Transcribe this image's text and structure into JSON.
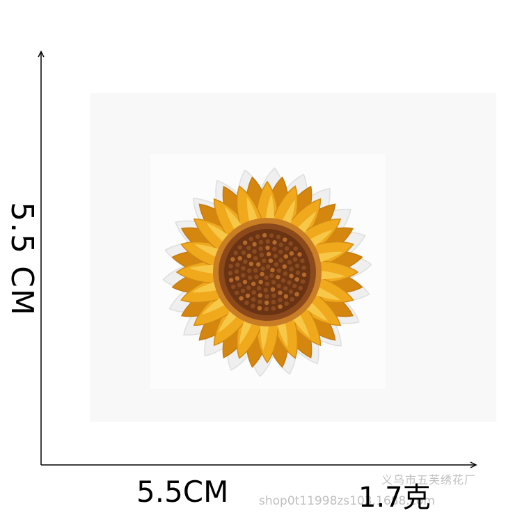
{
  "dimensions": {
    "height_label": "5.5 CM",
    "width_label": "5.5CM",
    "weight_label": "1.7克"
  },
  "watermark": {
    "shop_name": "义乌市五芙绣花厂",
    "shop_url": "shop0t11998zs103.1688.com"
  },
  "image": {
    "subject": "sunflower-embroidered-patch-icon",
    "colors": {
      "petal": "#f0a81c",
      "petal_highlight": "#f7c747",
      "petal_shadow": "#d4860e",
      "center": "#6a3414",
      "center_ring": "#a8642a",
      "border": "#efefef"
    }
  }
}
